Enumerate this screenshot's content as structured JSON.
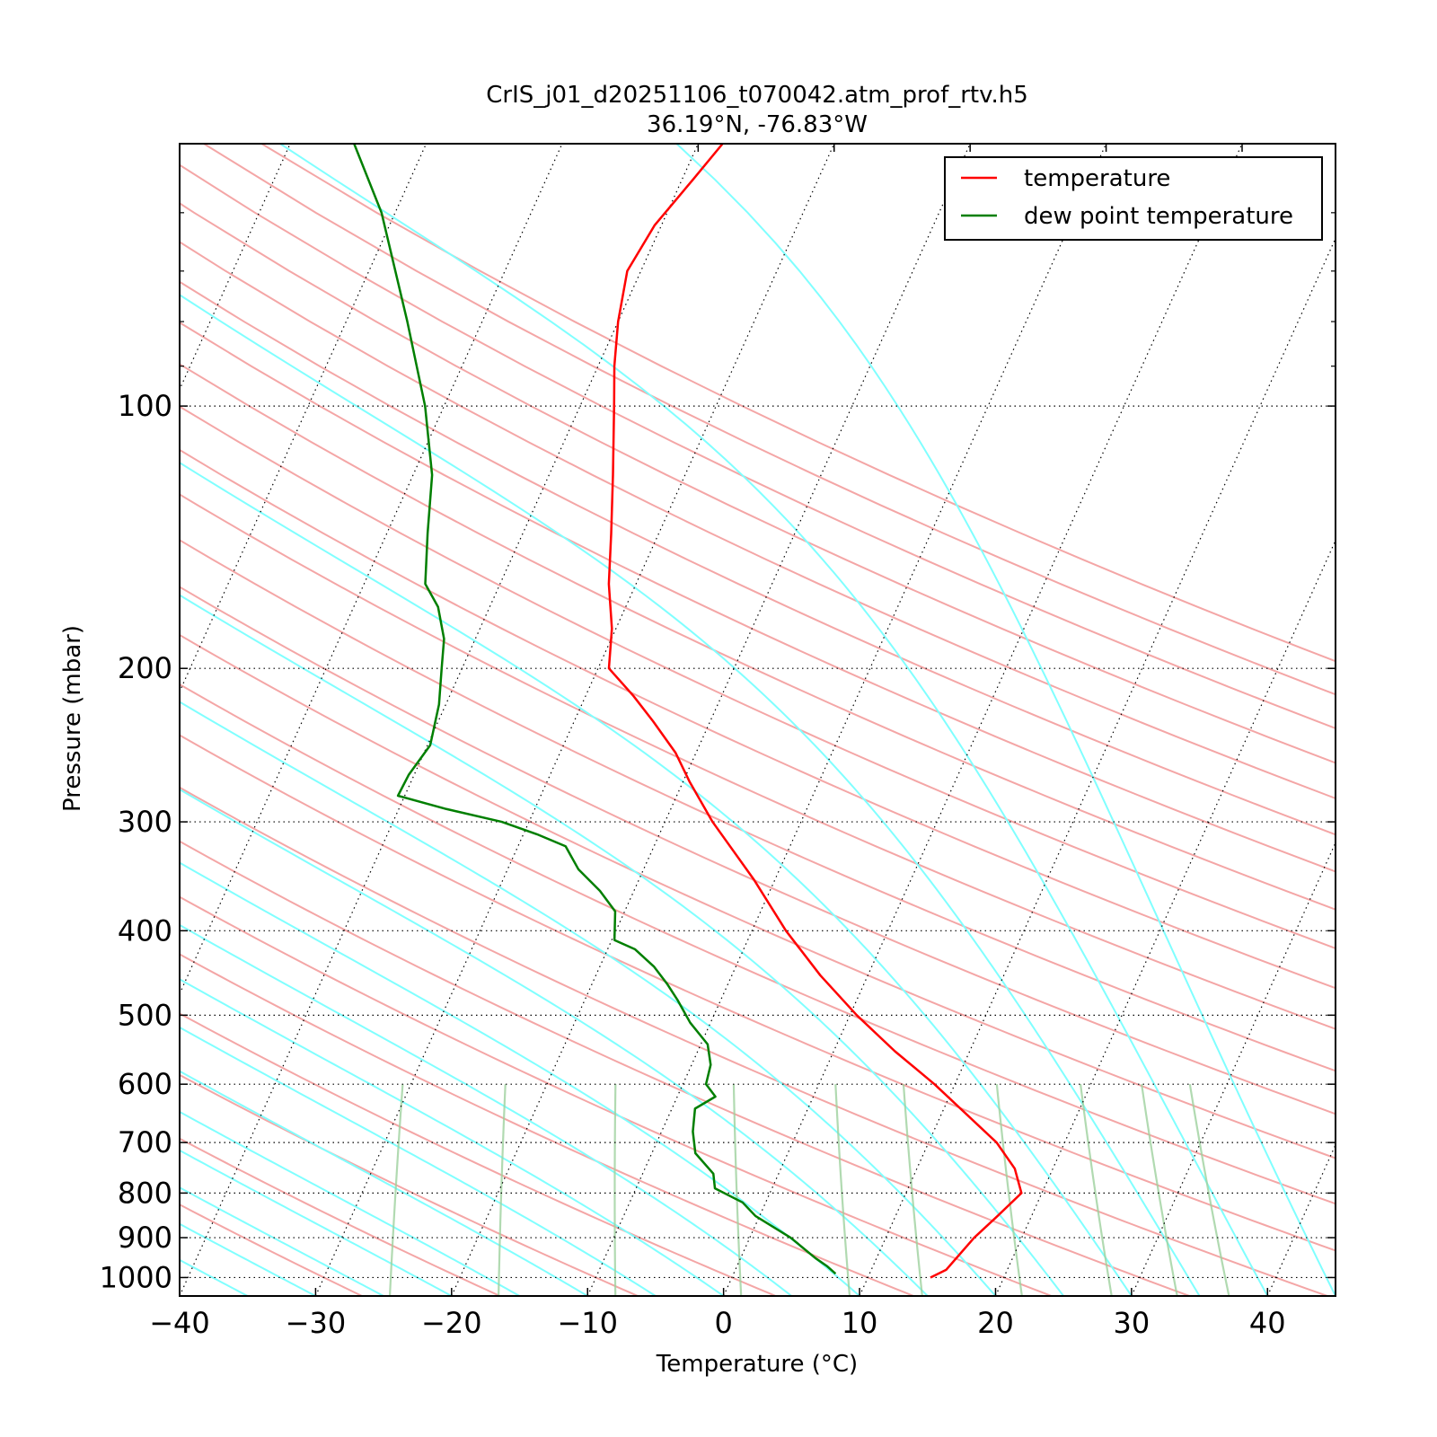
{
  "chart_data": {
    "type": "line",
    "title": "CrIS_j01_d20251106_t070042.atm_prof_rtv.h5",
    "subtitle": "36.19°N, -76.83°W",
    "xlabel": "Temperature (°C)",
    "ylabel": "Pressure (mbar)",
    "xlim": [
      -40,
      45
    ],
    "ylim": [
      1050,
      50
    ],
    "y_scale": "log",
    "skew": "skew-T log-p diagram",
    "x_ticks": [
      -40,
      -30,
      -20,
      -10,
      0,
      10,
      20,
      30,
      40
    ],
    "x_tick_labels": [
      "−40",
      "−30",
      "−20",
      "−10",
      "0",
      "10",
      "20",
      "30",
      "40"
    ],
    "y_ticks": [
      100,
      200,
      300,
      400,
      500,
      600,
      700,
      800,
      900,
      1000
    ],
    "y_tick_labels": [
      "100",
      "200",
      "300",
      "400",
      "500",
      "600",
      "700",
      "800",
      "900",
      "1000"
    ],
    "grid": "isobars dotted",
    "legend_position": "top-right",
    "background_lines": {
      "dry_adiabats_color": "#f4a6a6",
      "moist_adiabats_color": "#80ffff",
      "mixing_ratio_color": "#9dd19d",
      "isotherms_color": "#000000"
    },
    "series": [
      {
        "name": "temperature",
        "color": "#ff0000",
        "points": [
          [
            1000,
            14.6
          ],
          [
            980,
            15.5
          ],
          [
            900,
            16.5
          ],
          [
            850,
            17.5
          ],
          [
            800,
            18.5
          ],
          [
            750,
            17.2
          ],
          [
            700,
            15.0
          ],
          [
            600,
            8.5
          ],
          [
            550,
            4.5
          ],
          [
            500,
            0.5
          ],
          [
            450,
            -3.5
          ],
          [
            400,
            -7.5
          ],
          [
            350,
            -11.5
          ],
          [
            300,
            -16.5
          ],
          [
            270,
            -19.5
          ],
          [
            250,
            -21.5
          ],
          [
            230,
            -24.2
          ],
          [
            215,
            -26.5
          ],
          [
            200,
            -29.2
          ],
          [
            180,
            -30.3
          ],
          [
            160,
            -32.0
          ],
          [
            140,
            -33.5
          ],
          [
            120,
            -35.3
          ],
          [
            100,
            -37.5
          ],
          [
            90,
            -38.8
          ],
          [
            80,
            -40.0
          ],
          [
            70,
            -41.0
          ],
          [
            62,
            -40.5
          ],
          [
            55,
            -39.2
          ],
          [
            50,
            -38.2
          ]
        ]
      },
      {
        "name": "dew point temperature",
        "color": "#007f00",
        "points": [
          [
            990,
            7.5
          ],
          [
            970,
            6.6
          ],
          [
            950,
            5.5
          ],
          [
            900,
            3.0
          ],
          [
            850,
            -0.3
          ],
          [
            820,
            -1.7
          ],
          [
            790,
            -4.2
          ],
          [
            760,
            -4.8
          ],
          [
            720,
            -6.8
          ],
          [
            680,
            -7.7
          ],
          [
            640,
            -8.3
          ],
          [
            620,
            -7.2
          ],
          [
            600,
            -8.3
          ],
          [
            570,
            -8.6
          ],
          [
            540,
            -9.5
          ],
          [
            510,
            -11.5
          ],
          [
            480,
            -13.2
          ],
          [
            460,
            -14.5
          ],
          [
            440,
            -16.0
          ],
          [
            420,
            -18.0
          ],
          [
            410,
            -19.8
          ],
          [
            380,
            -20.7
          ],
          [
            360,
            -22.5
          ],
          [
            340,
            -24.8
          ],
          [
            320,
            -26.5
          ],
          [
            310,
            -29.0
          ],
          [
            300,
            -32.0
          ],
          [
            290,
            -36.5
          ],
          [
            280,
            -40.5
          ],
          [
            265,
            -40.4
          ],
          [
            245,
            -39.8
          ],
          [
            220,
            -40.5
          ],
          [
            200,
            -41.5
          ],
          [
            185,
            -42.3
          ],
          [
            170,
            -43.8
          ],
          [
            160,
            -45.5
          ],
          [
            140,
            -47.0
          ],
          [
            120,
            -48.6
          ],
          [
            100,
            -51.4
          ],
          [
            80,
            -55.5
          ],
          [
            60,
            -61.0
          ],
          [
            50,
            -65.3
          ]
        ]
      }
    ]
  }
}
